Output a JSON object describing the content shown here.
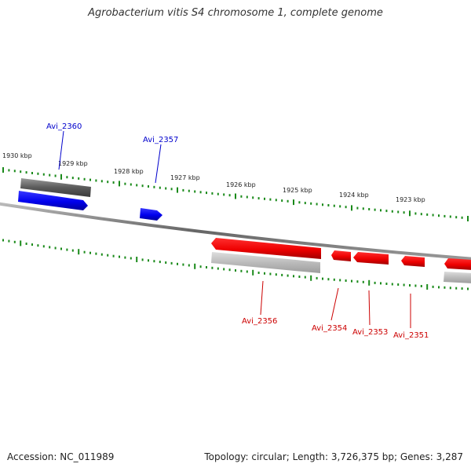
{
  "title": "Agrobacterium vitis S4 chromosome 1, complete genome",
  "footer": {
    "accession": "Accession: NC_011989",
    "summary": "Topology: circular; Length: 3,726,375 bp; Genes: 3,287"
  },
  "scale": {
    "ticks": [
      "1930 kbp",
      "1929 kbp",
      "1928 kbp",
      "1927 kbp",
      "1926 kbp",
      "1925 kbp",
      "1924 kbp",
      "1923 kbp"
    ]
  },
  "genes": [
    {
      "name": "Avi_2360",
      "strand": "forward",
      "color": "#0000cc"
    },
    {
      "name": "Avi_2357",
      "strand": "forward",
      "color": "#0000cc"
    },
    {
      "name": "Avi_2356",
      "strand": "reverse",
      "color": "#cc0000"
    },
    {
      "name": "Avi_2354",
      "strand": "reverse",
      "color": "#cc0000"
    },
    {
      "name": "Avi_2353",
      "strand": "reverse",
      "color": "#cc0000"
    },
    {
      "name": "Avi_2351",
      "strand": "reverse",
      "color": "#cc0000"
    }
  ],
  "colors": {
    "forward_strand": "#0000ff",
    "reverse_strand": "#ff0000",
    "tick_marks": "#1a8a1a",
    "backbone": "#777777"
  }
}
